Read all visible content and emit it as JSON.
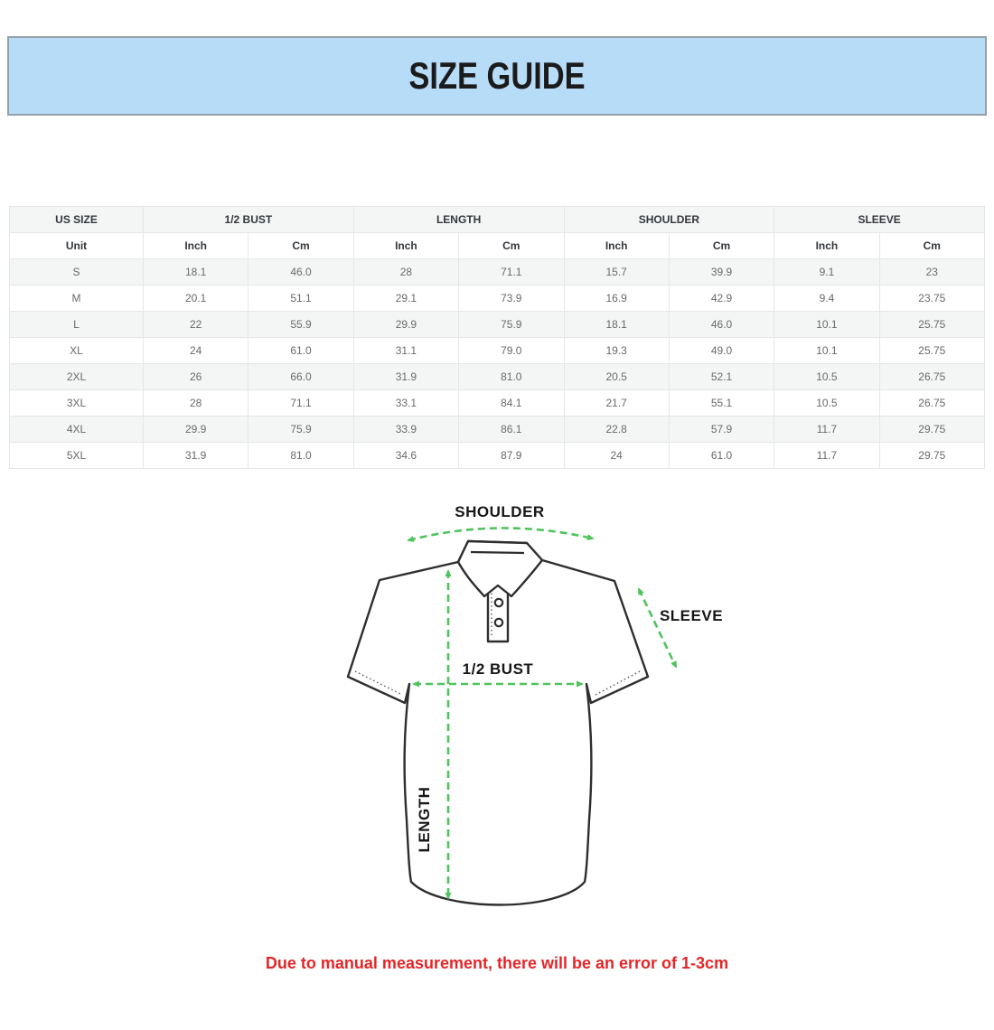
{
  "banner": {
    "title": "SIZE GUIDE"
  },
  "colors": {
    "banner-bg": "#b7dcf7",
    "banner-border": "#96a0a7",
    "arrow-green": "#4fc35c",
    "note-red": "#e42527"
  },
  "table": {
    "group_headers": [
      {
        "label": "US SIZE",
        "span": 1
      },
      {
        "label": "1/2 BUST",
        "span": 2
      },
      {
        "label": "LENGTH",
        "span": 2
      },
      {
        "label": "SHOULDER",
        "span": 2
      },
      {
        "label": "SLEEVE",
        "span": 2
      }
    ],
    "unit_row": [
      "Unit",
      "Inch",
      "Cm",
      "Inch",
      "Cm",
      "Inch",
      "Cm",
      "Inch",
      "Cm"
    ],
    "rows": [
      [
        "S",
        "18.1",
        "46.0",
        "28",
        "71.1",
        "15.7",
        "39.9",
        "9.1",
        "23"
      ],
      [
        "M",
        "20.1",
        "51.1",
        "29.1",
        "73.9",
        "16.9",
        "42.9",
        "9.4",
        "23.75"
      ],
      [
        "L",
        "22",
        "55.9",
        "29.9",
        "75.9",
        "18.1",
        "46.0",
        "10.1",
        "25.75"
      ],
      [
        "XL",
        "24",
        "61.0",
        "31.1",
        "79.0",
        "19.3",
        "49.0",
        "10.1",
        "25.75"
      ],
      [
        "2XL",
        "26",
        "66.0",
        "31.9",
        "81.0",
        "20.5",
        "52.1",
        "10.5",
        "26.75"
      ],
      [
        "3XL",
        "28",
        "71.1",
        "33.1",
        "84.1",
        "21.7",
        "55.1",
        "10.5",
        "26.75"
      ],
      [
        "4XL",
        "29.9",
        "75.9",
        "33.9",
        "86.1",
        "22.8",
        "57.9",
        "11.7",
        "29.75"
      ],
      [
        "5XL",
        "31.9",
        "81.0",
        "34.6",
        "87.9",
        "24",
        "61.0",
        "11.7",
        "29.75"
      ]
    ]
  },
  "diagram": {
    "labels": {
      "shoulder": "SHOULDER",
      "sleeve": "SLEEVE",
      "bust": "1/2 BUST",
      "length": "LENGTH"
    }
  },
  "note": {
    "text": "Due to manual measurement, there will be an error of 1-3cm"
  }
}
